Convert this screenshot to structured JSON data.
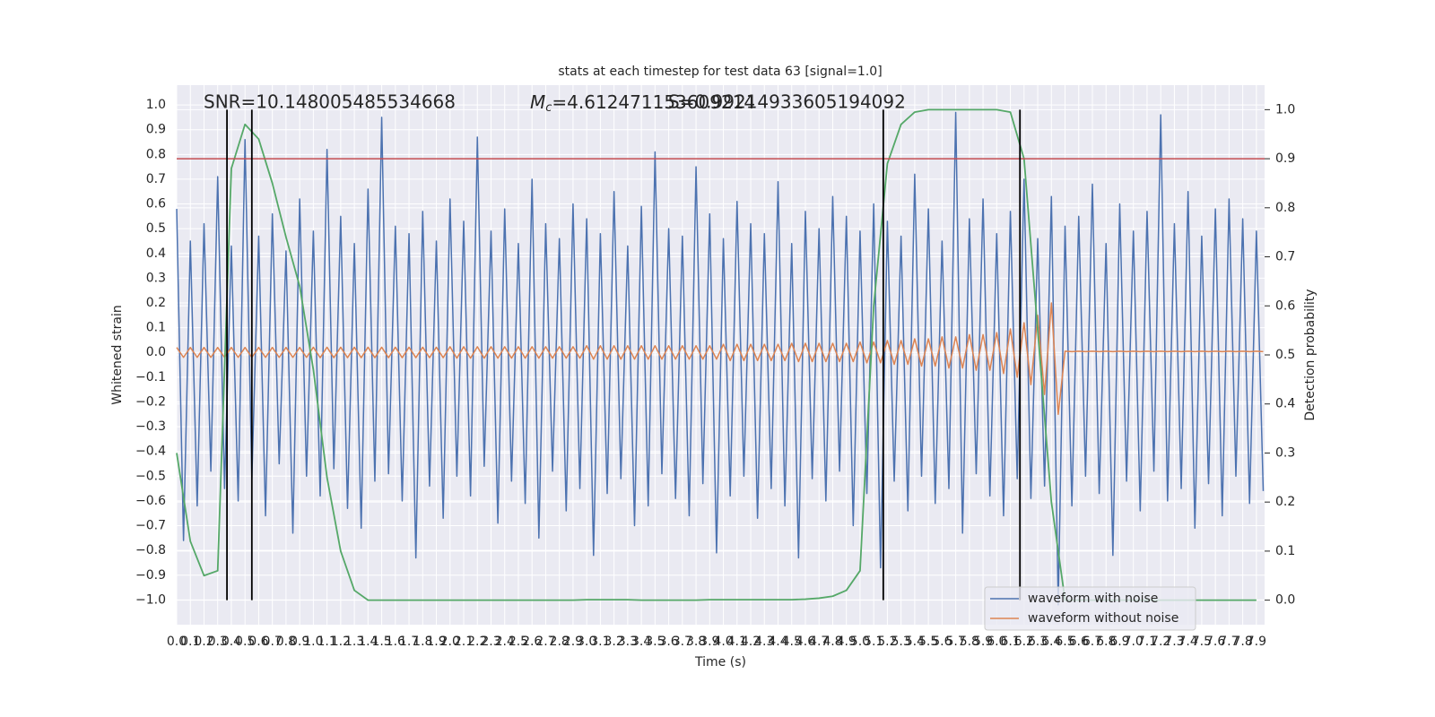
{
  "chart_data": {
    "type": "line",
    "title": "stats at each timestep for test data 63 [signal=1.0]",
    "xlabel": "Time (s)",
    "ylabel": "Whitened strain",
    "y2label": "Detection probability",
    "annotations": [
      {
        "text": "SNR=10.148005485534668"
      },
      {
        "symbol": "M",
        "subscript": "c",
        "text": "=4.612471153609214"
      },
      {
        "text": "S=0.99214933605194092"
      }
    ],
    "xlim": [
      0,
      7.96
    ],
    "ylim": [
      -1.1,
      1.08
    ],
    "y2lim": [
      -0.05,
      1.05
    ],
    "grid": true,
    "legend": "lower right",
    "background": "#eaeaf2",
    "xticks": [
      {
        "value": 0,
        "label": "0.0"
      },
      0.1,
      0.2,
      0.3,
      0.4,
      0.5,
      0.6,
      0.7,
      0.8,
      0.9,
      {
        "value": 1,
        "label": "1.0"
      },
      1.1,
      1.2,
      1.3,
      1.4,
      1.5,
      1.6,
      1.7,
      1.8,
      1.9,
      {
        "value": 2,
        "label": "2.0"
      },
      2.1,
      2.2,
      2.3,
      2.4,
      2.5,
      2.6,
      2.7,
      2.8,
      2.9,
      {
        "value": 3,
        "label": "3.0"
      },
      3.1,
      3.2,
      3.3,
      3.4,
      3.5,
      3.6,
      3.7,
      3.8,
      3.9,
      {
        "value": 4,
        "label": "4.0"
      },
      4.1,
      4.2,
      4.3,
      4.4,
      4.5,
      4.6,
      4.7,
      4.8,
      4.9,
      {
        "value": 5,
        "label": "5.0"
      },
      5.1,
      5.2,
      5.3,
      5.4,
      5.5,
      5.6,
      5.7,
      5.8,
      5.9,
      {
        "value": 6,
        "label": "6.0"
      },
      6.1,
      6.2,
      6.3,
      6.4,
      6.5,
      6.6,
      6.7,
      6.8,
      6.9,
      {
        "value": 7,
        "label": "7.0"
      },
      7.1,
      7.2,
      7.3,
      7.4,
      7.5,
      7.6,
      7.7,
      7.8,
      7.9
    ],
    "yticks": [
      {
        "value": -1,
        "label": "−1.0"
      },
      {
        "value": -0.9,
        "label": "−0.9"
      },
      {
        "value": -0.8,
        "label": "−0.8"
      },
      {
        "value": -0.7,
        "label": "−0.7"
      },
      {
        "value": -0.6,
        "label": "−0.6"
      },
      {
        "value": -0.5,
        "label": "−0.5"
      },
      {
        "value": -0.4,
        "label": "−0.4"
      },
      {
        "value": -0.3,
        "label": "−0.3"
      },
      {
        "value": -0.2,
        "label": "−0.2"
      },
      {
        "value": -0.1,
        "label": "−0.1"
      },
      {
        "value": 0,
        "label": "0.0"
      },
      0.1,
      0.2,
      0.3,
      0.4,
      0.5,
      0.6,
      0.7,
      0.8,
      0.9,
      {
        "value": 1,
        "label": "1.0"
      }
    ],
    "y2ticks": [
      {
        "value": 0,
        "label": "0.0"
      },
      0.1,
      0.2,
      0.3,
      0.4,
      0.5,
      0.6,
      0.7,
      0.8,
      0.9,
      {
        "value": 1,
        "label": "1.0"
      }
    ],
    "x": [
      0,
      0.05,
      0.1,
      0.15,
      0.2,
      0.25,
      0.3,
      0.35,
      0.4,
      0.45,
      0.5,
      0.55,
      0.6,
      0.65,
      0.7,
      0.75,
      0.8,
      0.85,
      0.9,
      0.95,
      1,
      1.05,
      1.1,
      1.15,
      1.2,
      1.25,
      1.3,
      1.35,
      1.4,
      1.45,
      1.5,
      1.55,
      1.6,
      1.65,
      1.7,
      1.75,
      1.8,
      1.85,
      1.9,
      1.95,
      2,
      2.05,
      2.1,
      2.15,
      2.2,
      2.25,
      2.3,
      2.35,
      2.4,
      2.45,
      2.5,
      2.55,
      2.6,
      2.65,
      2.7,
      2.75,
      2.8,
      2.85,
      2.9,
      2.95,
      3,
      3.05,
      3.1,
      3.15,
      3.2,
      3.25,
      3.3,
      3.35,
      3.4,
      3.45,
      3.5,
      3.55,
      3.6,
      3.65,
      3.7,
      3.75,
      3.8,
      3.85,
      3.9,
      3.95,
      4,
      4.05,
      4.1,
      4.15,
      4.2,
      4.25,
      4.3,
      4.35,
      4.4,
      4.45,
      4.5,
      4.55,
      4.6,
      4.65,
      4.7,
      4.75,
      4.8,
      4.85,
      4.9,
      4.95,
      5,
      5.05,
      5.1,
      5.15,
      5.2,
      5.25,
      5.3,
      5.35,
      5.4,
      5.45,
      5.5,
      5.55,
      5.6,
      5.65,
      5.7,
      5.75,
      5.8,
      5.85,
      5.9,
      5.95,
      6,
      6.05,
      6.1,
      6.15,
      6.2,
      6.25,
      6.3,
      6.35,
      6.4,
      6.45,
      6.5,
      6.55,
      6.6,
      6.65,
      6.7,
      6.75,
      6.8,
      6.85,
      6.9,
      6.95,
      7,
      7.05,
      7.1,
      7.15,
      7.2,
      7.25,
      7.3,
      7.35,
      7.4,
      7.45,
      7.5,
      7.55,
      7.6,
      7.65,
      7.7,
      7.75,
      7.8,
      7.85,
      7.9,
      7.95
    ],
    "series": [
      {
        "name": "waveform with noise",
        "color": "#4c72b0",
        "values": [
          0.58,
          -0.76,
          0.45,
          -0.62,
          0.52,
          -0.48,
          0.71,
          -0.55,
          0.43,
          -0.6,
          0.86,
          -0.51,
          0.47,
          -0.66,
          0.56,
          -0.45,
          0.41,
          -0.73,
          0.62,
          -0.5,
          0.49,
          -0.58,
          0.82,
          -0.47,
          0.55,
          -0.63,
          0.44,
          -0.71,
          0.66,
          -0.52,
          0.95,
          -0.49,
          0.51,
          -0.6,
          0.48,
          -0.83,
          0.57,
          -0.54,
          0.45,
          -0.67,
          0.62,
          -0.5,
          0.53,
          -0.58,
          0.87,
          -0.46,
          0.49,
          -0.69,
          0.58,
          -0.52,
          0.44,
          -0.61,
          0.7,
          -0.75,
          0.52,
          -0.48,
          0.46,
          -0.64,
          0.6,
          -0.55,
          0.54,
          -0.82,
          0.48,
          -0.57,
          0.65,
          -0.51,
          0.43,
          -0.7,
          0.59,
          -0.62,
          0.81,
          -0.49,
          0.5,
          -0.59,
          0.47,
          -0.66,
          0.75,
          -0.53,
          0.56,
          -0.81,
          0.46,
          -0.58,
          0.61,
          -0.5,
          0.52,
          -0.67,
          0.48,
          -0.55,
          0.69,
          -0.62,
          0.44,
          -0.83,
          0.57,
          -0.51,
          0.5,
          -0.6,
          0.63,
          -0.48,
          0.55,
          -0.7,
          0.49,
          -0.57,
          0.6,
          -0.87,
          0.53,
          -0.52,
          0.47,
          -0.64,
          0.72,
          -0.5,
          0.58,
          -0.61,
          0.45,
          -0.55,
          0.97,
          -0.73,
          0.54,
          -0.49,
          0.62,
          -0.58,
          0.48,
          -0.66,
          0.57,
          -0.51,
          0.7,
          -0.59,
          0.46,
          -0.54,
          0.63,
          -1.02,
          0.51,
          -0.62,
          0.55,
          -0.5,
          0.68,
          -0.57,
          0.44,
          -0.82,
          0.6,
          -0.52,
          0.49,
          -0.64,
          0.57,
          -0.48,
          0.96,
          -0.6,
          0.52,
          -0.55,
          0.65,
          -0.71,
          0.47,
          -0.53,
          0.58,
          -0.66,
          0.62,
          -0.5,
          0.54,
          -0.61,
          0.49,
          -0.56
        ]
      },
      {
        "name": "waveform without noise",
        "color": "#dd8452",
        "values": [
          0.02,
          -0.02,
          0.02,
          -0.02,
          0.02,
          -0.02,
          0.02,
          -0.02,
          0.02,
          -0.02,
          0.02,
          -0.02,
          0.02,
          -0.02,
          0.02,
          -0.02,
          0.02,
          -0.02,
          0.02,
          -0.02,
          0.021,
          -0.021,
          0.021,
          -0.021,
          0.021,
          -0.021,
          0.021,
          -0.021,
          0.021,
          -0.021,
          0.021,
          -0.021,
          0.021,
          -0.021,
          0.021,
          -0.021,
          0.021,
          -0.021,
          0.021,
          -0.021,
          0.023,
          -0.023,
          0.023,
          -0.023,
          0.023,
          -0.023,
          0.023,
          -0.023,
          0.023,
          -0.023,
          0.023,
          -0.023,
          0.023,
          -0.023,
          0.023,
          -0.023,
          0.023,
          -0.023,
          0.023,
          -0.023,
          0.027,
          -0.027,
          0.027,
          -0.027,
          0.027,
          -0.027,
          0.027,
          -0.027,
          0.027,
          -0.027,
          0.027,
          -0.027,
          0.027,
          -0.027,
          0.027,
          -0.027,
          0.027,
          -0.027,
          0.027,
          -0.027,
          0.033,
          -0.033,
          0.033,
          -0.033,
          0.033,
          -0.033,
          0.033,
          -0.033,
          0.033,
          -0.033,
          0.037,
          -0.037,
          0.037,
          -0.037,
          0.037,
          -0.037,
          0.037,
          -0.037,
          0.037,
          -0.037,
          0.042,
          -0.042,
          0.042,
          -0.042,
          0.048,
          -0.048,
          0.048,
          -0.048,
          0.055,
          -0.055,
          0.055,
          -0.055,
          0.063,
          -0.063,
          0.063,
          -0.063,
          0.072,
          -0.072,
          0.072,
          -0.072,
          0.08,
          -0.085,
          0.095,
          -0.1,
          0.12,
          -0.13,
          0.15,
          -0.17,
          0.2,
          -0.25,
          0.005,
          0.003,
          0.005,
          0.003,
          0.005,
          0.003,
          0.005,
          0.003,
          0.005,
          0.003,
          0.005,
          0.003,
          0.005,
          0.003,
          0.005,
          0.003,
          0.005,
          0.003,
          0.005,
          0.003,
          0.005,
          0.003,
          0.005,
          0.003,
          0.005,
          0.003,
          0.005,
          0.003,
          0.005,
          0.003
        ]
      },
      {
        "name": "detection probability",
        "color": "#55a868",
        "axis": "y2",
        "x": [
          0,
          0.1,
          0.2,
          0.3,
          0.4,
          0.5,
          0.6,
          0.7,
          0.8,
          0.9,
          1,
          1.1,
          1.2,
          1.3,
          1.4,
          1.5,
          1.6,
          1.7,
          1.8,
          1.9,
          2,
          2.1,
          2.2,
          2.3,
          2.4,
          2.5,
          2.6,
          2.7,
          2.8,
          2.9,
          3,
          3.1,
          3.2,
          3.3,
          3.4,
          3.5,
          3.6,
          3.7,
          3.8,
          3.9,
          4,
          4.1,
          4.2,
          4.3,
          4.4,
          4.5,
          4.6,
          4.7,
          4.8,
          4.9,
          5,
          5.1,
          5.2,
          5.3,
          5.4,
          5.5,
          5.6,
          5.7,
          5.8,
          5.9,
          6,
          6.1,
          6.2,
          6.3,
          6.4,
          6.5,
          6.6,
          6.7,
          6.8,
          6.9,
          7,
          7.1,
          7.2,
          7.3,
          7.4,
          7.5,
          7.6,
          7.7,
          7.8,
          7.9
        ],
        "values": [
          0.3,
          0.12,
          0.05,
          0.06,
          0.88,
          0.97,
          0.94,
          0.85,
          0.74,
          0.64,
          0.47,
          0.25,
          0.1,
          0.02,
          0,
          0,
          0,
          0,
          0,
          0,
          0,
          0,
          0,
          0,
          0,
          0,
          0,
          0,
          0,
          0,
          0.001,
          0.001,
          0.001,
          0.001,
          0,
          0,
          0,
          0,
          0,
          0.001,
          0.001,
          0.001,
          0.001,
          0.001,
          0.001,
          0.001,
          0.002,
          0.004,
          0.008,
          0.02,
          0.06,
          0.6,
          0.89,
          0.97,
          0.995,
          1,
          1,
          1,
          1,
          1,
          1,
          0.995,
          0.9,
          0.55,
          0.2,
          0,
          0,
          0,
          0,
          0,
          0,
          0,
          0,
          0,
          0,
          0,
          0,
          0,
          0,
          0
        ]
      }
    ],
    "threshold": {
      "value": 0.9,
      "axis": "y2",
      "color": "#c44e52"
    },
    "vlines": {
      "values": [
        0.368,
        0.55,
        5.17,
        6.17
      ],
      "from": 0,
      "to": 1,
      "axis": "y2",
      "color": "#000000"
    },
    "legend_series": [
      0,
      1
    ]
  }
}
